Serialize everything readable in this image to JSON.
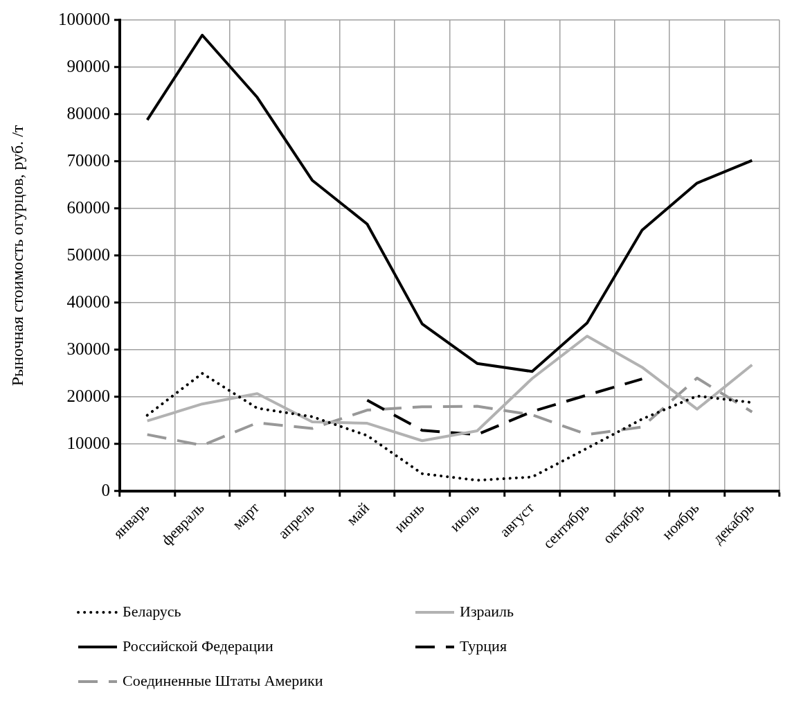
{
  "chart_data": {
    "type": "line",
    "ylabel": "Рыночная стоимость огурцов, руб. /т",
    "categories": [
      "январь",
      "февраль",
      "март",
      "апрель",
      "май",
      "июнь",
      "июль",
      "август",
      "сентябрь",
      "октябрь",
      "ноябрь",
      "декабрь"
    ],
    "series": [
      {
        "name": "Беларусь",
        "color": "#000000",
        "line_style": "dotted",
        "values": [
          16100,
          25000,
          17600,
          15800,
          11800,
          3700,
          2300,
          3000,
          9100,
          15300,
          20200,
          18800
        ]
      },
      {
        "name": "Израиль",
        "color": "#b2b2b2",
        "line_style": "solid",
        "values": [
          14900,
          18500,
          20700,
          14700,
          14400,
          10700,
          12800,
          23900,
          32900,
          26300,
          17400,
          26800
        ]
      },
      {
        "name": "Российской Федерации",
        "color": "#000000",
        "line_style": "solid",
        "values": [
          78800,
          96800,
          83600,
          66000,
          56700,
          35500,
          27100,
          25400,
          35700,
          55400,
          65400,
          70200
        ]
      },
      {
        "name": "Турция",
        "color": "#000000",
        "line_style": "dashed",
        "values": [
          null,
          null,
          null,
          null,
          19300,
          12900,
          12000,
          16900,
          20400,
          23800,
          null,
          null
        ]
      },
      {
        "name": "Соединенные Штаты Америки",
        "color": "#989898",
        "line_style": "dashed",
        "values": [
          12000,
          9700,
          14500,
          13300,
          17200,
          17900,
          18000,
          16200,
          12000,
          13600,
          24000,
          16800
        ]
      }
    ],
    "ylim": [
      0,
      100000
    ],
    "yticks": [
      0,
      10000,
      20000,
      30000,
      40000,
      50000,
      60000,
      70000,
      80000,
      90000,
      100000
    ],
    "grid": true,
    "legend": "bottom",
    "marker": "none"
  }
}
